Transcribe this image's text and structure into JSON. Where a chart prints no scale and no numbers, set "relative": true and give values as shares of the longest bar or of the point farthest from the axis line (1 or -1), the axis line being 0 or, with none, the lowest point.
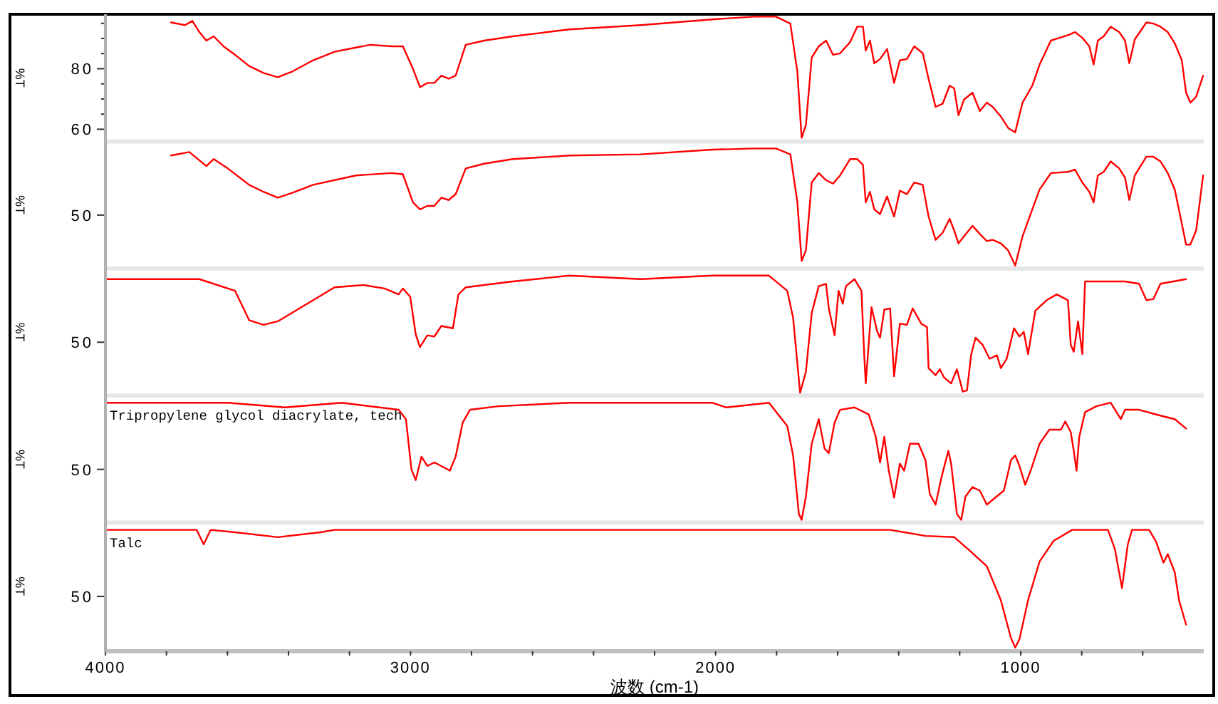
{
  "chart_data": [
    {
      "type": "line",
      "ylabel": "%T",
      "xlim": [
        4000,
        400
      ],
      "ylim": [
        56,
        98
      ],
      "tick_labels": "y",
      "yticks": [
        60,
        {
          "value": 65,
          "label": null
        },
        {
          "value": 70,
          "label": null
        },
        {
          "value": 75,
          "label": null
        },
        80,
        {
          "value": 85,
          "label": null
        },
        {
          "value": 90,
          "label": null
        },
        {
          "value": 95,
          "label": null
        }
      ],
      "series": [
        {
          "color": "#ff0000",
          "x": [
            3785,
            3739,
            3715,
            3692,
            3669,
            3645,
            3613,
            3575,
            3529,
            3482,
            3435,
            3389,
            3319,
            3249,
            3179,
            3132,
            3062,
            3025,
            2992,
            2969,
            2945,
            2922,
            2899,
            2875,
            2852,
            2819,
            2759,
            2665,
            2479,
            2245,
            2012,
            1872,
            1802,
            1755,
            1732,
            1718,
            1704,
            1685,
            1662,
            1638,
            1615,
            1592,
            1559,
            1536,
            1517,
            1508,
            1494,
            1480,
            1461,
            1438,
            1415,
            1396,
            1373,
            1349,
            1321,
            1302,
            1279,
            1256,
            1233,
            1218,
            1204,
            1186,
            1158,
            1134,
            1111,
            1092,
            1065,
            1041,
            1018,
            994,
            962,
            938,
            901,
            845,
            822,
            798,
            775,
            761,
            747,
            728,
            705,
            677,
            658,
            644,
            626,
            588,
            565,
            542,
            518,
            495,
            472,
            458,
            444,
            425,
            402
          ],
          "values": [
            95.3,
            94.4,
            95.8,
            92.1,
            89.3,
            90.7,
            87.4,
            84.6,
            80.9,
            78.6,
            77.2,
            79.0,
            82.8,
            85.6,
            87.0,
            87.9,
            87.4,
            87.4,
            80.0,
            73.9,
            75.3,
            75.3,
            77.7,
            76.7,
            77.7,
            87.9,
            89.3,
            90.7,
            93.0,
            94.4,
            96.3,
            97.2,
            97.2,
            94.9,
            79.0,
            57.2,
            61.4,
            83.7,
            87.4,
            89.3,
            84.6,
            85.1,
            88.8,
            93.9,
            93.9,
            86.0,
            89.3,
            81.8,
            83.2,
            86.5,
            75.3,
            82.8,
            83.2,
            87.4,
            85.1,
            76.7,
            67.4,
            68.4,
            74.4,
            73.5,
            64.6,
            69.8,
            72.1,
            66.0,
            68.8,
            67.4,
            64.2,
            60.4,
            59.0,
            68.8,
            74.4,
            81.4,
            89.3,
            91.1,
            92.1,
            90.2,
            87.4,
            81.4,
            89.3,
            90.7,
            93.9,
            92.1,
            89.3,
            81.8,
            89.7,
            95.3,
            94.9,
            93.9,
            92.1,
            88.4,
            82.8,
            72.1,
            68.8,
            70.7,
            77.7
          ]
        }
      ]
    },
    {
      "type": "line",
      "ylabel": "%T",
      "xlim": [
        4000,
        400
      ],
      "relative": true,
      "tick_labels": "y",
      "annotations": [
        "50"
      ],
      "series": [
        {
          "color": "#ff0000",
          "x": [
            3785,
            3725,
            3669,
            3645,
            3599,
            3529,
            3482,
            3435,
            3389,
            3319,
            3179,
            3062,
            3025,
            2992,
            2969,
            2945,
            2922,
            2899,
            2875,
            2852,
            2819,
            2759,
            2665,
            2479,
            2245,
            2012,
            1872,
            1802,
            1755,
            1732,
            1718,
            1704,
            1685,
            1662,
            1638,
            1615,
            1592,
            1559,
            1536,
            1517,
            1508,
            1494,
            1480,
            1461,
            1438,
            1415,
            1396,
            1373,
            1349,
            1321,
            1302,
            1279,
            1256,
            1233,
            1218,
            1204,
            1186,
            1158,
            1134,
            1111,
            1092,
            1065,
            1041,
            1018,
            994,
            962,
            938,
            901,
            845,
            822,
            798,
            775,
            761,
            747,
            728,
            705,
            677,
            658,
            644,
            626,
            588,
            565,
            542,
            518,
            495,
            472,
            458,
            444,
            425,
            402
          ],
          "values": [
            0.94,
            0.97,
            0.85,
            0.91,
            0.83,
            0.69,
            0.63,
            0.58,
            0.62,
            0.69,
            0.77,
            0.79,
            0.78,
            0.54,
            0.48,
            0.51,
            0.51,
            0.58,
            0.56,
            0.61,
            0.83,
            0.87,
            0.91,
            0.94,
            0.95,
            0.99,
            1,
            1,
            0.95,
            0.54,
            0.04,
            0.13,
            0.71,
            0.79,
            0.73,
            0.7,
            0.77,
            0.91,
            0.91,
            0.86,
            0.54,
            0.63,
            0.48,
            0.44,
            0.59,
            0.42,
            0.64,
            0.61,
            0.71,
            0.69,
            0.42,
            0.22,
            0.28,
            0.4,
            0.3,
            0.19,
            0.25,
            0.34,
            0.27,
            0.21,
            0.22,
            0.19,
            0.13,
            0,
            0.25,
            0.48,
            0.65,
            0.79,
            0.8,
            0.82,
            0.71,
            0.63,
            0.54,
            0.77,
            0.8,
            0.89,
            0.83,
            0.75,
            0.56,
            0.77,
            0.93,
            0.93,
            0.89,
            0.79,
            0.65,
            0.36,
            0.18,
            0.18,
            0.3,
            0.77
          ]
        }
      ]
    },
    {
      "type": "line",
      "ylabel": "%T",
      "xlim": [
        4000,
        400
      ],
      "relative": true,
      "tick_labels": "y",
      "annotations": [
        "50"
      ],
      "series": [
        {
          "color": "#ff0000",
          "x": [
            4000,
            3692,
            3575,
            3529,
            3482,
            3435,
            3319,
            3249,
            3155,
            3085,
            3039,
            3025,
            3001,
            2983,
            2969,
            2945,
            2922,
            2899,
            2861,
            2843,
            2819,
            2759,
            2665,
            2479,
            2245,
            2012,
            1825,
            1765,
            1746,
            1723,
            1704,
            1685,
            1662,
            1638,
            1629,
            1610,
            1597,
            1583,
            1573,
            1545,
            1522,
            1513,
            1508,
            1489,
            1470,
            1461,
            1447,
            1428,
            1415,
            1396,
            1373,
            1354,
            1326,
            1307,
            1302,
            1279,
            1265,
            1251,
            1228,
            1209,
            1190,
            1176,
            1162,
            1148,
            1125,
            1102,
            1078,
            1065,
            1046,
            1022,
            1004,
            990,
            976,
            952,
            915,
            882,
            845,
            836,
            826,
            812,
            798,
            789,
            752,
            658,
            612,
            588,
            565,
            542,
            458
          ],
          "values": [
            0.97,
            0.97,
            0.87,
            0.62,
            0.58,
            0.61,
            0.79,
            0.9,
            0.92,
            0.89,
            0.84,
            0.89,
            0.82,
            0.5,
            0.39,
            0.49,
            0.48,
            0.57,
            0.55,
            0.84,
            0.9,
            0.92,
            0.95,
            1,
            0.97,
            1,
            1,
            0.87,
            0.64,
            0,
            0.18,
            0.68,
            0.91,
            0.93,
            0.72,
            0.49,
            0.87,
            0.76,
            0.91,
            0.97,
            0.87,
            0.33,
            0.08,
            0.73,
            0.52,
            0.47,
            0.71,
            0.72,
            0.14,
            0.59,
            0.58,
            0.72,
            0.59,
            0.56,
            0.21,
            0.15,
            0.2,
            0.13,
            0.08,
            0.2,
            0.01,
            0.02,
            0.33,
            0.47,
            0.41,
            0.29,
            0.32,
            0.21,
            0.29,
            0.55,
            0.48,
            0.52,
            0.33,
            0.7,
            0.79,
            0.84,
            0.79,
            0.41,
            0.35,
            0.61,
            0.33,
            0.95,
            0.95,
            0.95,
            0.93,
            0.79,
            0.8,
            0.93,
            0.97
          ]
        }
      ]
    },
    {
      "type": "line",
      "ylabel": "%T",
      "xlim": [
        4000,
        400
      ],
      "relative": true,
      "tick_labels": "y",
      "annotations": [
        "50"
      ],
      "series": [
        {
          "name": "Tripropylene glycol diacrylate, tech",
          "color": "#ff0000",
          "x": [
            4000,
            3599,
            3412,
            3225,
            3039,
            3015,
            2997,
            2983,
            2964,
            2945,
            2922,
            2899,
            2871,
            2852,
            2829,
            2805,
            2712,
            2479,
            2012,
            1965,
            1825,
            1765,
            1746,
            1727,
            1718,
            1704,
            1685,
            1662,
            1643,
            1629,
            1610,
            1592,
            1545,
            1498,
            1475,
            1461,
            1447,
            1433,
            1415,
            1396,
            1382,
            1363,
            1335,
            1312,
            1298,
            1279,
            1260,
            1237,
            1228,
            1209,
            1195,
            1181,
            1158,
            1134,
            1111,
            1079,
            1055,
            1032,
            1018,
            1004,
            985,
            966,
            938,
            906,
            868,
            854,
            836,
            826,
            817,
            808,
            789,
            752,
            705,
            672,
            658,
            612,
            542,
            495,
            458
          ],
          "values": [
            1,
            1,
            0.96,
            1,
            0.94,
            0.86,
            0.43,
            0.34,
            0.54,
            0.46,
            0.49,
            0.46,
            0.42,
            0.54,
            0.83,
            0.94,
            0.97,
            1,
            1,
            0.96,
            1,
            0.8,
            0.55,
            0.05,
            0,
            0.2,
            0.65,
            0.86,
            0.61,
            0.57,
            0.83,
            0.94,
            0.96,
            0.9,
            0.71,
            0.49,
            0.71,
            0.43,
            0.19,
            0.48,
            0.42,
            0.65,
            0.65,
            0.51,
            0.22,
            0.13,
            0.36,
            0.59,
            0.48,
            0.05,
            0,
            0.2,
            0.28,
            0.25,
            0.13,
            0.2,
            0.25,
            0.51,
            0.55,
            0.46,
            0.3,
            0.43,
            0.65,
            0.77,
            0.77,
            0.84,
            0.75,
            0.59,
            0.42,
            0.71,
            0.92,
            0.97,
            1,
            0.86,
            0.94,
            0.94,
            0.89,
            0.86,
            0.78
          ]
        }
      ]
    },
    {
      "type": "line",
      "ylabel": "%T",
      "xlabel": "波数 (cm-1)",
      "xlim": [
        4000,
        400
      ],
      "relative": true,
      "annotations": [
        "50"
      ],
      "xticks": [
        4000,
        {
          "value": 3800,
          "label": null
        },
        {
          "value": 3600,
          "label": null
        },
        {
          "value": 3400,
          "label": null
        },
        {
          "value": 3200,
          "label": null
        },
        3000,
        {
          "value": 2800,
          "label": null
        },
        {
          "value": 2600,
          "label": null
        },
        {
          "value": 2400,
          "label": null
        },
        {
          "value": 2200,
          "label": null
        },
        2000,
        {
          "value": 1800,
          "label": null
        },
        {
          "value": 1600,
          "label": null
        },
        {
          "value": 1400,
          "label": null
        },
        {
          "value": 1200,
          "label": null
        },
        1000,
        {
          "value": 800,
          "label": null
        },
        {
          "value": 600,
          "label": null
        }
      ],
      "series": [
        {
          "name": "Talc",
          "color": "#ff0000",
          "x": [
            4000,
            3701,
            3678,
            3655,
            3575,
            3435,
            3295,
            3249,
            2012,
            1428,
            1312,
            1218,
            1172,
            1111,
            1065,
            1032,
            1018,
            1004,
            976,
            938,
            892,
            831,
            714,
            691,
            668,
            649,
            635,
            579,
            556,
            532,
            518,
            495,
            481,
            458
          ],
          "values": [
            1,
            1,
            0.88,
            1,
            0.98,
            0.94,
            0.98,
            1,
            1,
            1,
            0.95,
            0.94,
            0.84,
            0.7,
            0.42,
            0.11,
            0.03,
            0.1,
            0.42,
            0.74,
            0.91,
            1,
            1,
            0.84,
            0.52,
            0.88,
            1,
            1,
            0.9,
            0.73,
            0.8,
            0.65,
            0.42,
            0.22
          ]
        }
      ]
    }
  ]
}
